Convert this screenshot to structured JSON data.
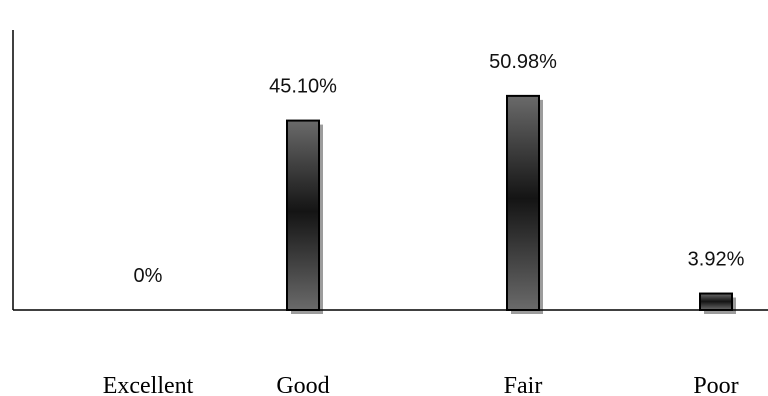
{
  "chart_data": {
    "type": "bar",
    "categories": [
      "Excellent",
      "Good",
      "Fair",
      "Poor"
    ],
    "values": [
      0,
      45.1,
      50.98,
      3.92
    ],
    "data_labels": [
      "0%",
      "45.10%",
      "50.98%",
      "3.92%"
    ],
    "title": "",
    "xlabel": "",
    "ylabel": "",
    "ylim": [
      0,
      60
    ],
    "grid": false,
    "legend": "none",
    "colors": {
      "bar_edge": "#6a6a6a",
      "bar_center": "#141414",
      "bar_shadow": "#9c9c9c",
      "bar_outline": "#000000",
      "axis": "#000000"
    }
  }
}
